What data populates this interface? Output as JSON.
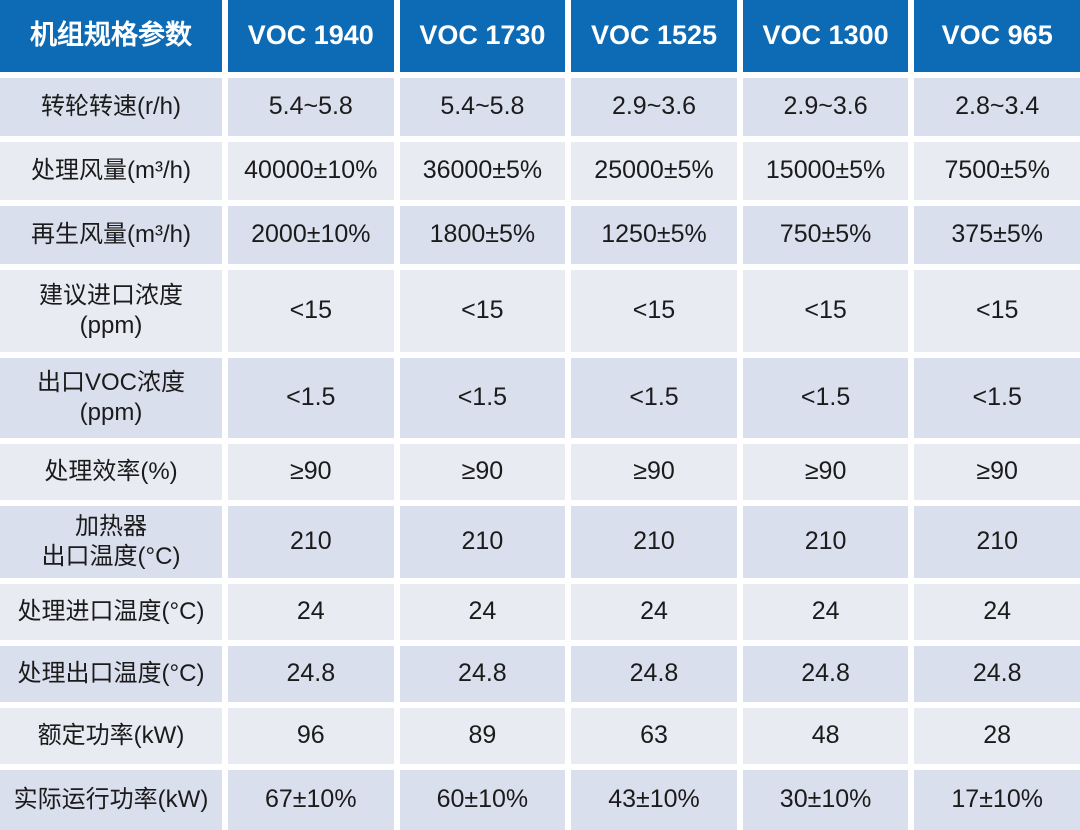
{
  "colors": {
    "header_bg": "#0d6ab4",
    "header_text": "#ffffff",
    "row_dark": "#dadfed",
    "row_light": "#e9ebf3",
    "body_text": "#1b1b1b",
    "grid_gap": "#ffffff"
  },
  "chart_data": {
    "type": "table",
    "title": "机组规格参数",
    "columns": [
      "机组规格参数",
      "VOC 1940",
      "VOC 1730",
      "VOC 1525",
      "VOC 1300",
      "VOC 965"
    ],
    "rows": [
      {
        "label": "转轮转速(r/h)",
        "values": [
          "5.4~5.8",
          "5.4~5.8",
          "2.9~3.6",
          "2.9~3.6",
          "2.8~3.4"
        ]
      },
      {
        "label": "处理风量(m³/h)",
        "values": [
          "40000±10%",
          "36000±5%",
          "25000±5%",
          "15000±5%",
          "7500±5%"
        ]
      },
      {
        "label": "再生风量(m³/h)",
        "values": [
          "2000±10%",
          "1800±5%",
          "1250±5%",
          "750±5%",
          "375±5%"
        ]
      },
      {
        "label": "建议进口浓度\n(ppm)",
        "values": [
          "<15",
          "<15",
          "<15",
          "<15",
          "<15"
        ]
      },
      {
        "label": "出口VOC浓度\n(ppm)",
        "values": [
          "<1.5",
          "<1.5",
          "<1.5",
          "<1.5",
          "<1.5"
        ]
      },
      {
        "label": "处理效率(%)",
        "values": [
          "≥90",
          "≥90",
          "≥90",
          "≥90",
          "≥90"
        ]
      },
      {
        "label": "加热器\n出口温度(°C)",
        "values": [
          "210",
          "210",
          "210",
          "210",
          "210"
        ]
      },
      {
        "label": "处理进口温度(°C)",
        "values": [
          "24",
          "24",
          "24",
          "24",
          "24"
        ]
      },
      {
        "label": "处理出口温度(°C)",
        "values": [
          "24.8",
          "24.8",
          "24.8",
          "24.8",
          "24.8"
        ]
      },
      {
        "label": "额定功率(kW)",
        "values": [
          "96",
          "89",
          "63",
          "48",
          "28"
        ]
      },
      {
        "label": "实际运行功率(kW)",
        "values": [
          "67±10%",
          "60±10%",
          "43±10%",
          "30±10%",
          "17±10%"
        ]
      }
    ]
  }
}
